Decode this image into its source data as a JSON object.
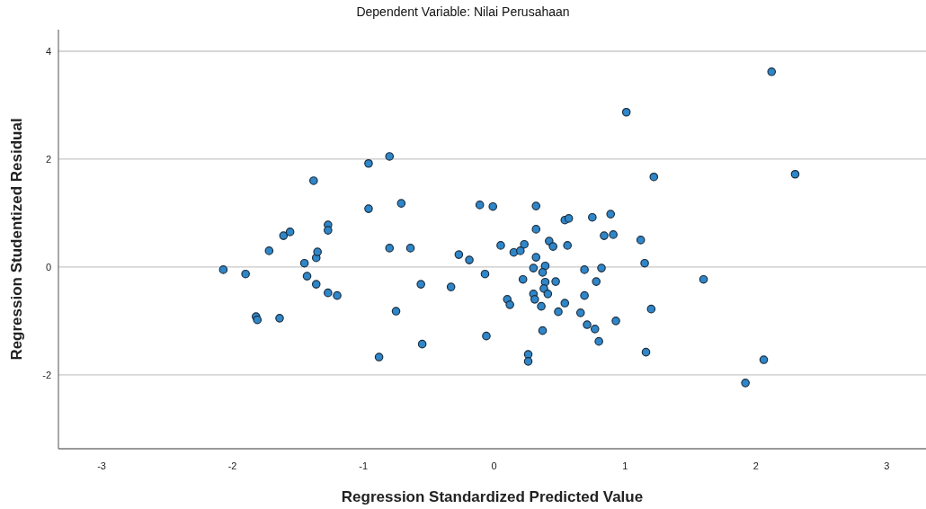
{
  "chart_data": {
    "type": "scatter",
    "title": "Dependent Variable: Nilai Perusahaan",
    "xlabel": "Regression Standardized Predicted Value",
    "ylabel": "Regression Studentized Residual",
    "xlim": [
      -3.33,
      3.3
    ],
    "ylim": [
      -3.37,
      4.4
    ],
    "xticks": [
      -3,
      -2,
      -1,
      0,
      1,
      2,
      3
    ],
    "yticks": [
      -2,
      0,
      2,
      4
    ],
    "grid": "y",
    "marker": "circle",
    "series": [
      {
        "color": "#2f86c8",
        "x": [
          -2.07,
          -1.9,
          -1.82,
          -1.81,
          -1.64,
          -1.72,
          -1.61,
          -1.56,
          -1.45,
          -1.43,
          -1.36,
          -1.36,
          -1.35,
          -1.38,
          -1.27,
          -1.27,
          -1.27,
          -1.2,
          -0.96,
          -0.96,
          -0.8,
          -0.71,
          -0.8,
          -0.75,
          -0.88,
          -0.64,
          -0.56,
          -0.55,
          -0.11,
          -0.01,
          0.32,
          0.54,
          0.57,
          0.75,
          0.89,
          0.32,
          0.84,
          0.91,
          1.12,
          0.05,
          0.23,
          0.15,
          0.2,
          0.42,
          0.45,
          0.56,
          -0.27,
          -0.19,
          0.32,
          0.3,
          0.39,
          0.37,
          0.69,
          0.82,
          1.15,
          -0.07,
          -0.33,
          0.22,
          0.39,
          0.47,
          0.78,
          0.38,
          0.41,
          0.3,
          0.31,
          0.1,
          0.12,
          0.36,
          0.54,
          0.69,
          0.49,
          0.66,
          1.2,
          0.71,
          0.77,
          0.93,
          0.8,
          0.37,
          -0.06,
          1.16,
          0.26,
          0.26,
          1.01,
          1.22,
          2.3,
          1.6,
          2.06,
          1.92,
          2.12
        ],
        "values": [
          -0.05,
          -0.13,
          -0.92,
          -0.98,
          -0.95,
          0.3,
          0.58,
          0.65,
          0.07,
          -0.17,
          -0.32,
          0.17,
          0.28,
          1.6,
          0.78,
          0.68,
          -0.48,
          -0.53,
          1.92,
          1.08,
          2.05,
          1.18,
          0.35,
          -0.82,
          -1.67,
          0.35,
          -0.32,
          -1.43,
          1.15,
          1.12,
          1.13,
          0.87,
          0.9,
          0.92,
          0.98,
          0.7,
          0.58,
          0.6,
          0.5,
          0.4,
          0.42,
          0.27,
          0.3,
          0.48,
          0.38,
          0.4,
          0.23,
          0.13,
          0.18,
          -0.02,
          0.02,
          -0.1,
          -0.05,
          -0.02,
          0.07,
          -0.13,
          -0.37,
          -0.23,
          -0.28,
          -0.27,
          -0.27,
          -0.4,
          -0.5,
          -0.5,
          -0.6,
          -0.6,
          -0.7,
          -0.73,
          -0.67,
          -0.53,
          -0.83,
          -0.85,
          -0.78,
          -1.07,
          -1.15,
          -1.0,
          -1.38,
          -1.18,
          -1.28,
          -1.58,
          -1.62,
          -1.75,
          2.87,
          1.67,
          1.72,
          -0.23,
          -1.72,
          -2.15,
          3.62
        ]
      }
    ]
  }
}
